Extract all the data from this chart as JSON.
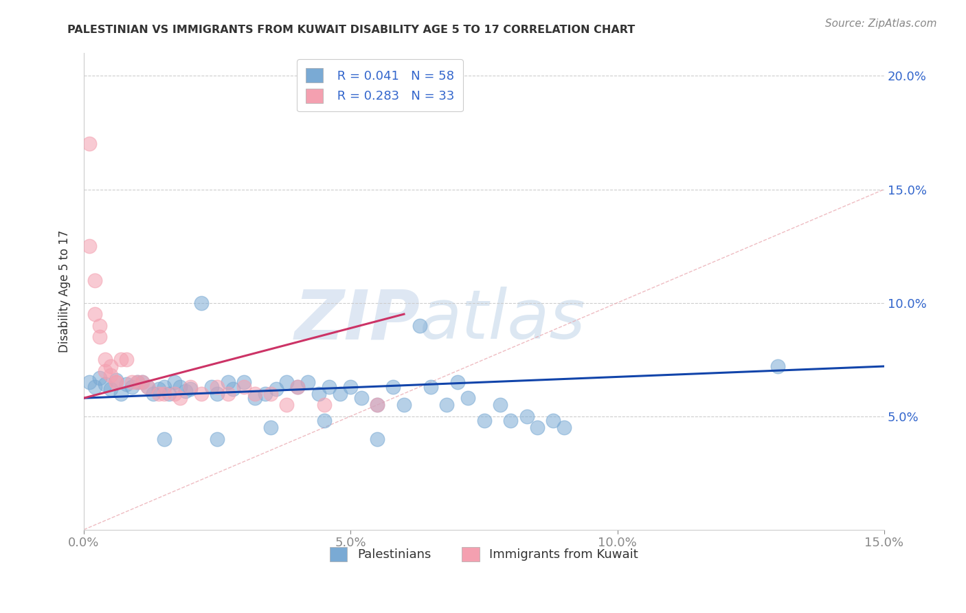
{
  "title": "PALESTINIAN VS IMMIGRANTS FROM KUWAIT DISABILITY AGE 5 TO 17 CORRELATION CHART",
  "source": "Source: ZipAtlas.com",
  "ylabel": "Disability Age 5 to 17",
  "xlim": [
    0.0,
    0.15
  ],
  "ylim": [
    0.0,
    0.21
  ],
  "xticks": [
    0.0,
    0.05,
    0.1,
    0.15
  ],
  "yticks_right": [
    0.05,
    0.1,
    0.15,
    0.2
  ],
  "ytick_labels_right": [
    "5.0%",
    "10.0%",
    "15.0%",
    "20.0%"
  ],
  "xtick_labels": [
    "0.0%",
    "5.0%",
    "10.0%",
    "15.0%"
  ],
  "legend_r1": "R = 0.041",
  "legend_n1": "N = 58",
  "legend_r2": "R = 0.283",
  "legend_n2": "N = 33",
  "label1": "Palestinians",
  "label2": "Immigrants from Kuwait",
  "color_blue": "#7aaad4",
  "color_pink": "#f4a0b0",
  "color_blue_line": "#1144aa",
  "color_pink_line": "#cc3366",
  "color_diag": "#e8a0a8",
  "watermark_zip": "ZIP",
  "watermark_atlas": "atlas",
  "blue_x": [
    0.001,
    0.002,
    0.003,
    0.004,
    0.005,
    0.006,
    0.007,
    0.008,
    0.009,
    0.01,
    0.011,
    0.012,
    0.013,
    0.014,
    0.015,
    0.016,
    0.017,
    0.018,
    0.019,
    0.02,
    0.022,
    0.024,
    0.025,
    0.027,
    0.028,
    0.03,
    0.032,
    0.034,
    0.036,
    0.038,
    0.04,
    0.042,
    0.044,
    0.046,
    0.048,
    0.05,
    0.052,
    0.055,
    0.058,
    0.06,
    0.063,
    0.065,
    0.068,
    0.07,
    0.072,
    0.075,
    0.078,
    0.08,
    0.083,
    0.085,
    0.088,
    0.09,
    0.035,
    0.045,
    0.015,
    0.025,
    0.055,
    0.13
  ],
  "blue_y": [
    0.065,
    0.063,
    0.067,
    0.064,
    0.062,
    0.066,
    0.06,
    0.064,
    0.063,
    0.065,
    0.065,
    0.063,
    0.06,
    0.062,
    0.063,
    0.06,
    0.065,
    0.063,
    0.061,
    0.062,
    0.1,
    0.063,
    0.06,
    0.065,
    0.062,
    0.065,
    0.058,
    0.06,
    0.062,
    0.065,
    0.063,
    0.065,
    0.06,
    0.063,
    0.06,
    0.063,
    0.058,
    0.055,
    0.063,
    0.055,
    0.09,
    0.063,
    0.055,
    0.065,
    0.058,
    0.048,
    0.055,
    0.048,
    0.05,
    0.045,
    0.048,
    0.045,
    0.045,
    0.048,
    0.04,
    0.04,
    0.04,
    0.072
  ],
  "pink_x": [
    0.001,
    0.001,
    0.002,
    0.002,
    0.003,
    0.003,
    0.004,
    0.004,
    0.005,
    0.005,
    0.006,
    0.006,
    0.007,
    0.008,
    0.009,
    0.01,
    0.011,
    0.012,
    0.014,
    0.015,
    0.017,
    0.018,
    0.02,
    0.022,
    0.025,
    0.027,
    0.03,
    0.032,
    0.035,
    0.038,
    0.04,
    0.045,
    0.055
  ],
  "pink_y": [
    0.17,
    0.125,
    0.11,
    0.095,
    0.09,
    0.085,
    0.075,
    0.07,
    0.072,
    0.068,
    0.065,
    0.065,
    0.075,
    0.075,
    0.065,
    0.065,
    0.065,
    0.063,
    0.06,
    0.06,
    0.06,
    0.058,
    0.063,
    0.06,
    0.063,
    0.06,
    0.063,
    0.06,
    0.06,
    0.055,
    0.063,
    0.055,
    0.055
  ],
  "blue_trend_x": [
    0.0,
    0.15
  ],
  "blue_trend_y": [
    0.058,
    0.072
  ],
  "pink_trend_x": [
    0.0,
    0.06
  ],
  "pink_trend_y": [
    0.058,
    0.095
  ]
}
